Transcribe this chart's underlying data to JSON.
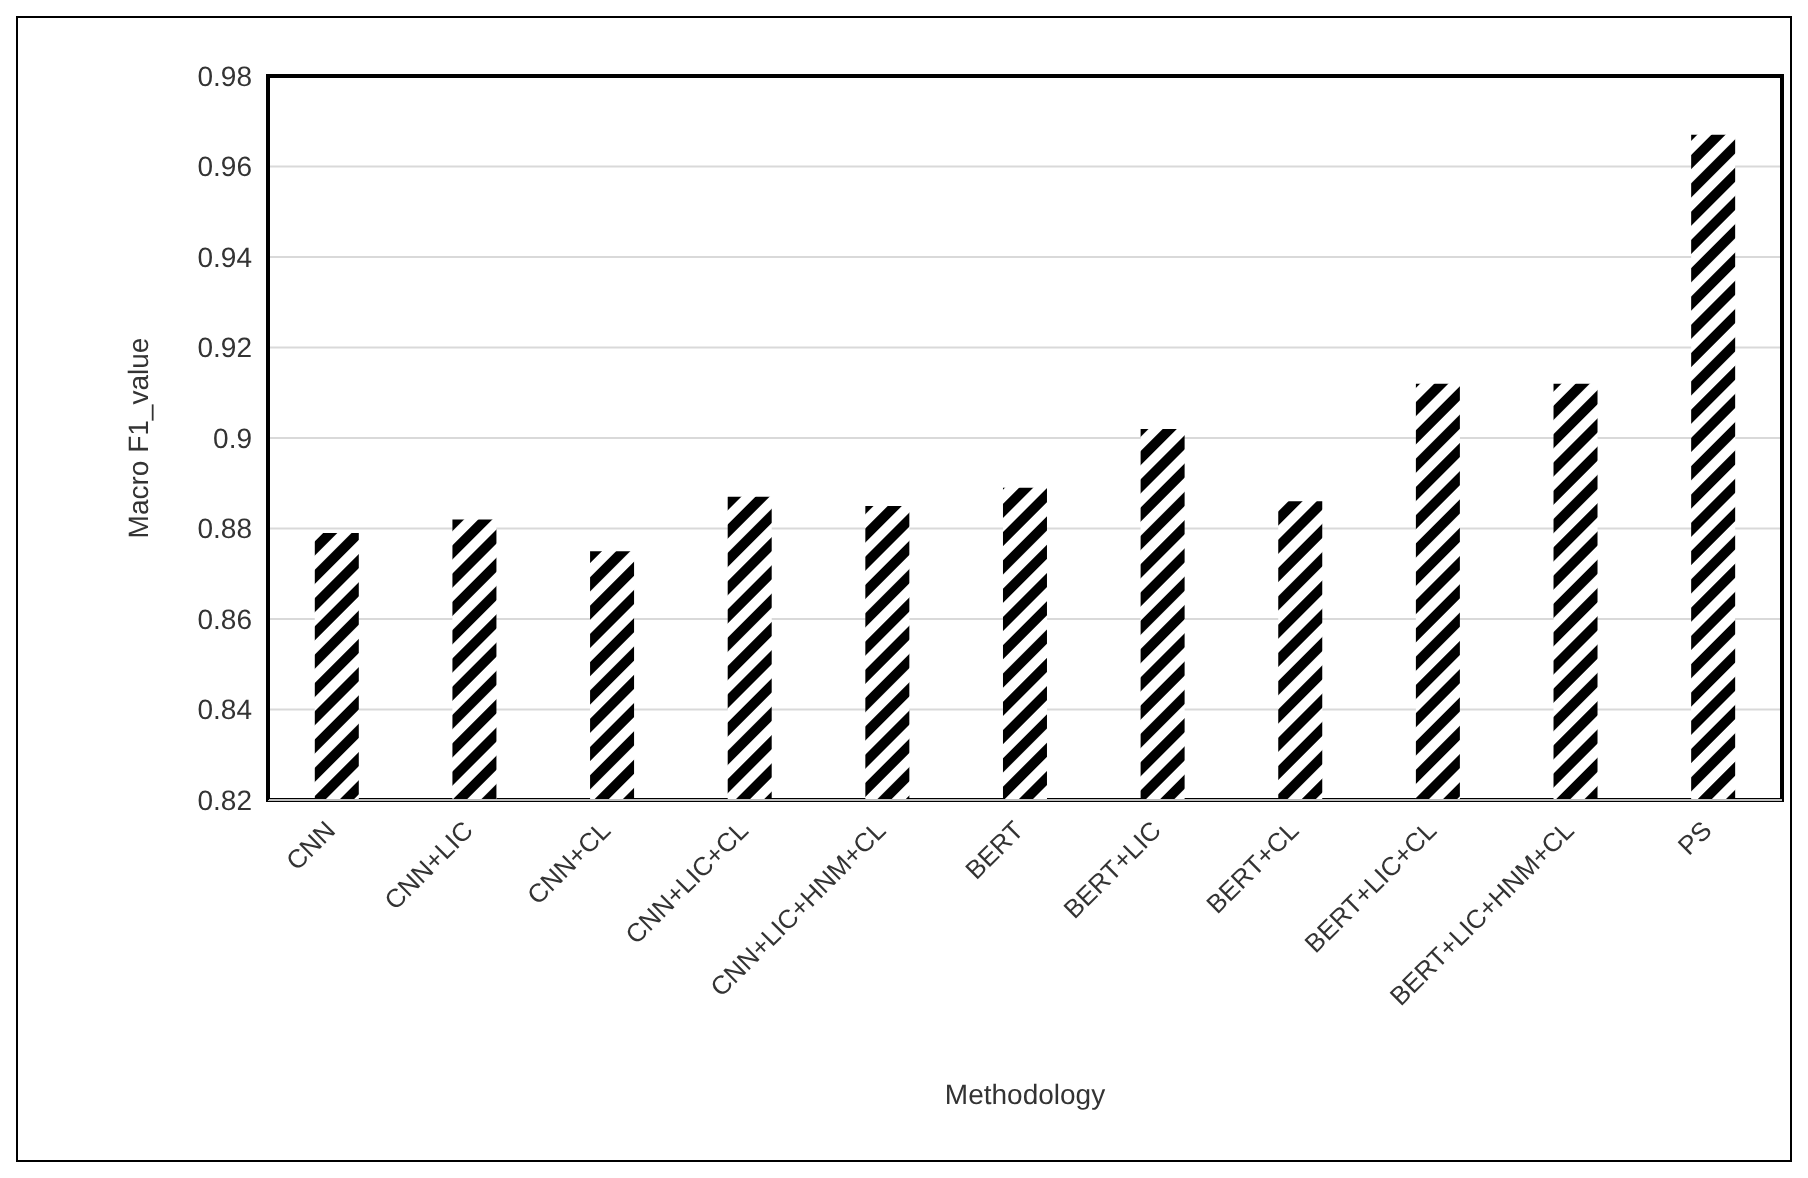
{
  "chart_data": {
    "type": "bar",
    "xlabel": "Methodology",
    "ylabel": "Macro F1_value",
    "categories": [
      "CNN",
      "CNN+LIC",
      "CNN+CL",
      "CNN+LIC+CL",
      "CNN+LIC+HNM+CL",
      "BERT",
      "BERT+LIC",
      "BERT+CL",
      "BERT+LIC+CL",
      "BERT+LIC+HNM+CL",
      "PS"
    ],
    "values": [
      0.879,
      0.882,
      0.875,
      0.887,
      0.885,
      0.889,
      0.902,
      0.886,
      0.912,
      0.912,
      0.967
    ],
    "color": "#000000",
    "ylim": [
      0.82,
      0.98
    ],
    "yticks": [
      0.82,
      0.84,
      0.86,
      0.88,
      0.9,
      0.92,
      0.94,
      0.96,
      0.98
    ],
    "grid": "y",
    "legend": false
  }
}
